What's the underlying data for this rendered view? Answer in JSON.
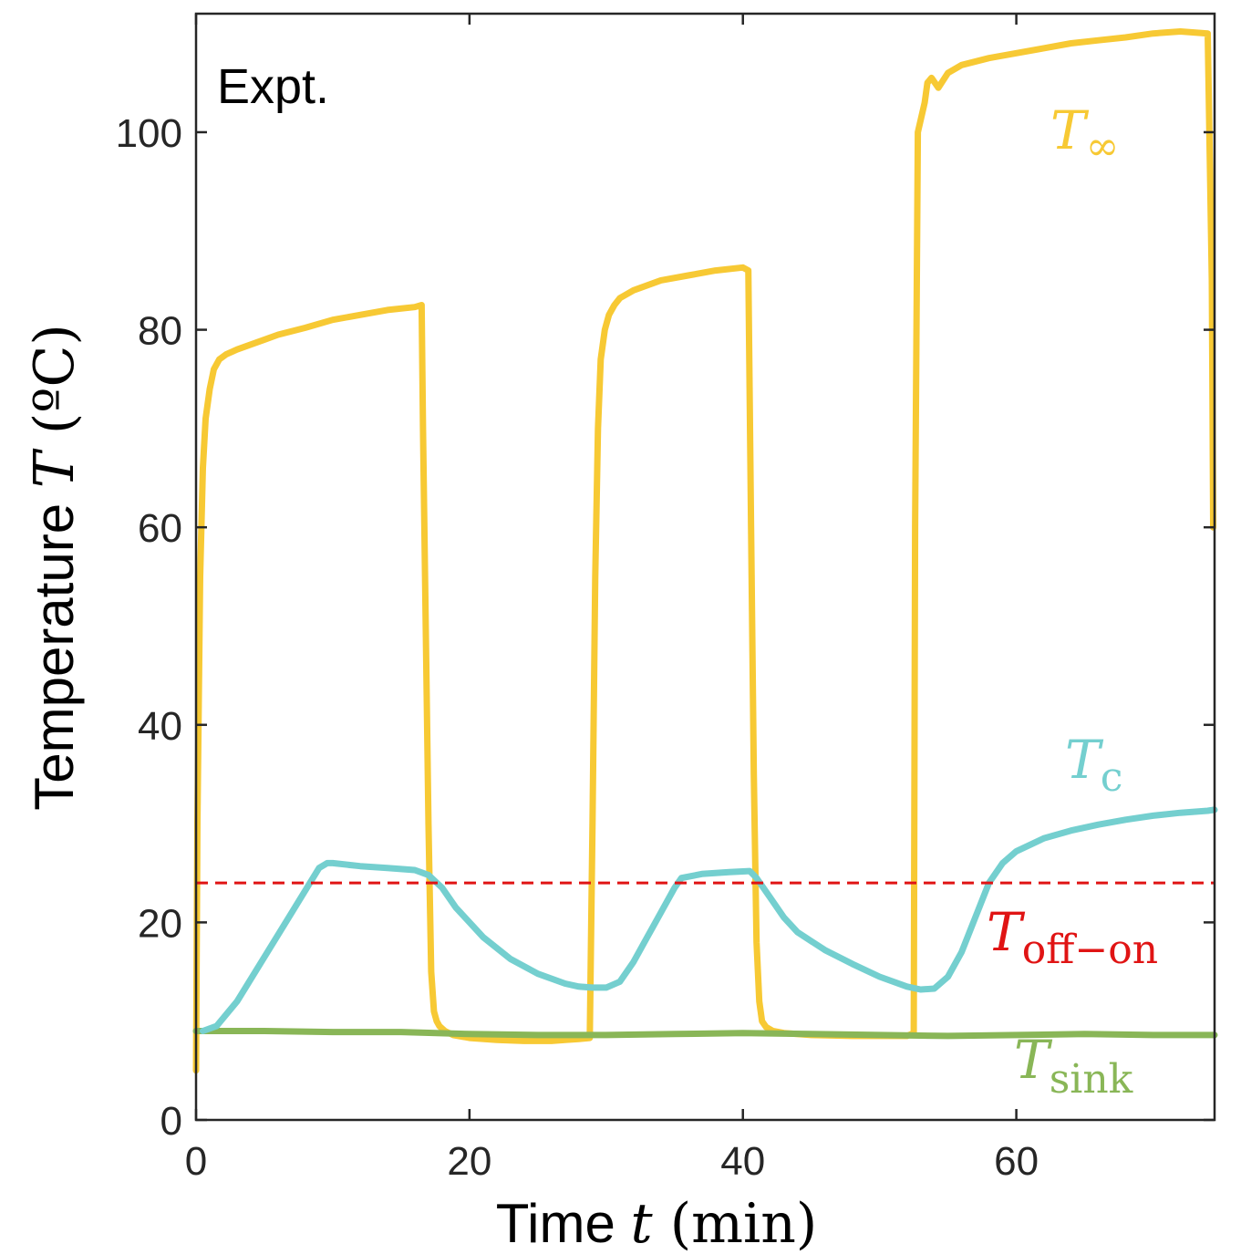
{
  "chart_data": {
    "type": "line",
    "panel_label": "Expt.",
    "xlabel": {
      "text": "Time ",
      "symbol": "t",
      "unit": " (min)"
    },
    "ylabel": {
      "text": "Temperature ",
      "symbol": "T",
      "unit": " (ºC)"
    },
    "xlim": [
      0,
      74.5
    ],
    "ylim": [
      0,
      112
    ],
    "xticks": [
      0,
      20,
      40,
      60
    ],
    "yticks": [
      0,
      20,
      40,
      60,
      80,
      100
    ],
    "grid": false,
    "series": [
      {
        "label_symbol": "T",
        "label_sub": "∞",
        "color": "#F7C934",
        "x": [
          0,
          0.1,
          0.3,
          0.5,
          0.7,
          1,
          1.3,
          1.7,
          2.2,
          3,
          4,
          5,
          6,
          8,
          10,
          12,
          14,
          16,
          16.5,
          16.6,
          16.8,
          17.0,
          17.2,
          17.4,
          17.6,
          17.8,
          18.2,
          18.8,
          20,
          22,
          24,
          26,
          27,
          28,
          28.8,
          29.0,
          29.2,
          29.4,
          29.6,
          29.9,
          30.2,
          30.6,
          31,
          32,
          34,
          36,
          38,
          40,
          40.4,
          40.6,
          40.8,
          41.0,
          41.2,
          41.4,
          41.7,
          42.2,
          43,
          45,
          48,
          50,
          52,
          52.5,
          52.6,
          52.8,
          53.3,
          53.5,
          53.8,
          54.3,
          55,
          56,
          58,
          60,
          62,
          64,
          66,
          68,
          70,
          72,
          74,
          74.3,
          74.4
        ],
        "y": [
          5,
          30,
          55,
          66,
          71,
          74,
          76,
          77,
          77.5,
          78,
          78.5,
          79,
          79.5,
          80.2,
          81,
          81.5,
          82,
          82.3,
          82.5,
          70,
          50,
          30,
          15,
          11,
          10,
          9.5,
          9,
          8.6,
          8.3,
          8.1,
          8.0,
          8.0,
          8.1,
          8.2,
          8.3,
          30,
          55,
          70,
          77,
          80,
          81.5,
          82.5,
          83.2,
          84,
          85,
          85.5,
          86,
          86.3,
          86,
          60,
          35,
          18,
          12,
          10,
          9.4,
          9,
          8.8,
          8.6,
          8.5,
          8.5,
          8.5,
          8.8,
          60,
          100,
          103,
          105,
          105.5,
          104.5,
          106,
          106.8,
          107.5,
          108,
          108.5,
          109,
          109.3,
          109.6,
          110,
          110.2,
          110,
          85,
          60
        ]
      },
      {
        "label_symbol": "T",
        "label_sub": "c",
        "color": "#74CFCF",
        "x": [
          0.5,
          1.5,
          3,
          5,
          7,
          9,
          9.6,
          10,
          12,
          14,
          16,
          17,
          18,
          19,
          21,
          23,
          25,
          27,
          28,
          29,
          30,
          31,
          32,
          33,
          34,
          35,
          35.5,
          37,
          39,
          40.5,
          41,
          42,
          43,
          44,
          46,
          48,
          50,
          52,
          53,
          54,
          55,
          56,
          57,
          58,
          59,
          60,
          62,
          64,
          66,
          68,
          70,
          72,
          74,
          74.5
        ],
        "y": [
          9,
          9.5,
          12,
          16.5,
          21,
          25.5,
          26,
          26,
          25.7,
          25.5,
          25.3,
          24.8,
          23.5,
          21.5,
          18.5,
          16.3,
          14.8,
          13.8,
          13.5,
          13.4,
          13.4,
          14,
          16,
          18.5,
          21,
          23.5,
          24.5,
          24.9,
          25.1,
          25.2,
          24.5,
          22.5,
          20.5,
          19,
          17.2,
          15.8,
          14.5,
          13.5,
          13.2,
          13.3,
          14.5,
          17,
          20.5,
          24,
          26,
          27.2,
          28.5,
          29.3,
          29.9,
          30.4,
          30.8,
          31.1,
          31.3,
          31.4
        ]
      },
      {
        "label_symbol": "T",
        "label_sub": "sink",
        "color": "#89B657",
        "x": [
          0,
          5,
          10,
          15,
          20,
          25,
          30,
          35,
          40,
          45,
          50,
          55,
          60,
          65,
          70,
          74.5
        ],
        "y": [
          9.0,
          9.0,
          8.9,
          8.9,
          8.7,
          8.6,
          8.6,
          8.7,
          8.8,
          8.7,
          8.6,
          8.5,
          8.6,
          8.7,
          8.6,
          8.6
        ]
      },
      {
        "label_symbol": "T",
        "label_sub": "off−on",
        "color": "#E01414",
        "style": "dashed",
        "x": [
          0,
          74.5
        ],
        "y": [
          24,
          24
        ]
      }
    ]
  }
}
